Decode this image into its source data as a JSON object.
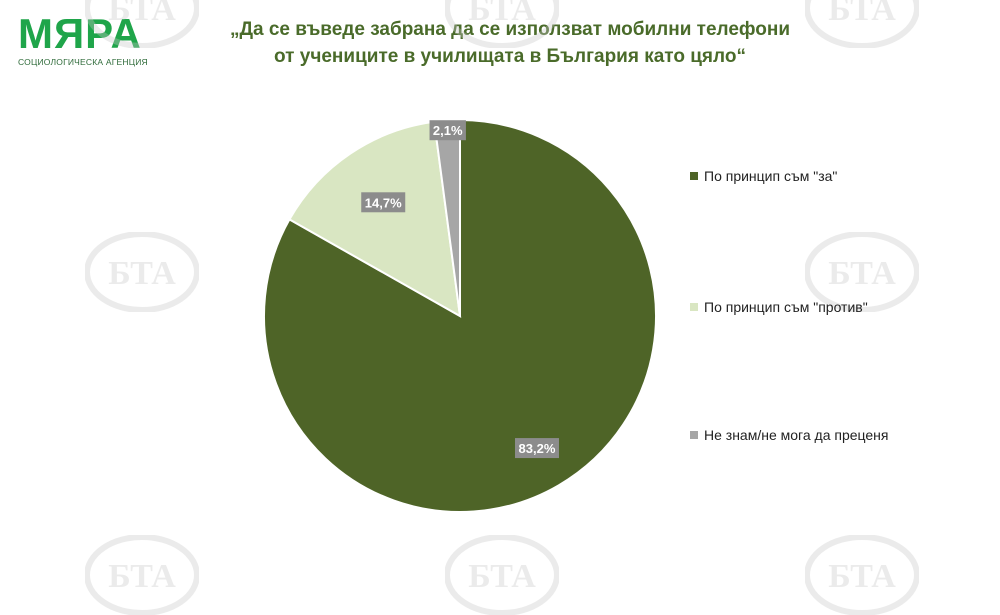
{
  "logo": {
    "name": "МЯРА",
    "subtitle": "СОЦИОЛОГИЧЕСКА АГЕНЦИЯ"
  },
  "title": {
    "line1": "„Да се въведе забрана да се използват мобилни телефони",
    "line2": "от учениците в училищата в България като цяло“"
  },
  "watermark_text": "БТА",
  "colors": {
    "brand": "#1fa54a",
    "title": "#4a6b2a",
    "for": "#4e6427",
    "against": "#d9e6c2",
    "unknown": "#a6a6a6",
    "data_label_bg": "#8c8c8c"
  },
  "chart_data": {
    "type": "pie",
    "title": "„Да се въведе забрана да се използват мобилни телефони от учениците в училищата в България като цяло“",
    "legend_position": "right",
    "slices": [
      {
        "label": "По принцип съм \"за\"",
        "value": 83.2,
        "display": "83,2%",
        "color": "#4e6427"
      },
      {
        "label": "По принцип съм \"против\"",
        "value": 14.7,
        "display": "14,7%",
        "color": "#d9e6c2"
      },
      {
        "label": "Не знам/не мога да преценя",
        "value": 2.1,
        "display": "2,1%",
        "color": "#a6a6a6"
      }
    ]
  }
}
